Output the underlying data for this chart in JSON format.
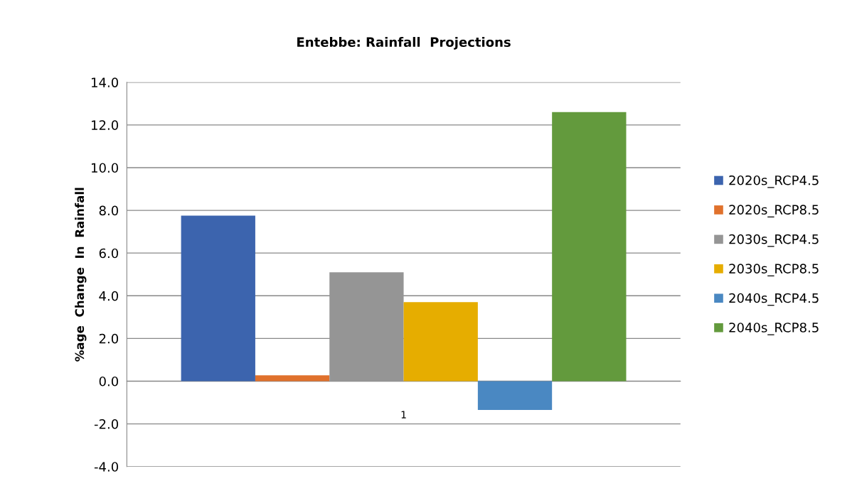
{
  "chart_data": {
    "type": "bar",
    "title": "Entebbe: Rainfall  Projections",
    "ylabel": "%age  Change  In  Rainfall",
    "categories": [
      "1"
    ],
    "series": [
      {
        "name": "2020s_RCP4.5",
        "color": "#3c64ae",
        "values": [
          7.75
        ]
      },
      {
        "name": "2020s_RCP8.5",
        "color": "#e0712c",
        "values": [
          0.27
        ]
      },
      {
        "name": "2030s_RCP4.5",
        "color": "#959595",
        "values": [
          5.1
        ]
      },
      {
        "name": "2030s_RCP8.5",
        "color": "#e6ad00",
        "values": [
          3.7
        ]
      },
      {
        "name": "2040s_RCP4.5",
        "color": "#4a88c2",
        "values": [
          -1.35
        ]
      },
      {
        "name": "2040s_RCP8.5",
        "color": "#639a3d",
        "values": [
          12.6
        ]
      }
    ],
    "ylim": [
      -4,
      14
    ],
    "yticks": [
      {
        "value": -4,
        "label": "-4.0"
      },
      {
        "value": -2,
        "label": "-2.0"
      },
      {
        "value": 0,
        "label": "0.0"
      },
      {
        "value": 2,
        "label": "2.0"
      },
      {
        "value": 4,
        "label": "4.0"
      },
      {
        "value": 6,
        "label": "6.0"
      },
      {
        "value": 8,
        "label": "8.0"
      },
      {
        "value": 10,
        "label": "10.0"
      },
      {
        "value": 12,
        "label": "12.0"
      },
      {
        "value": 14,
        "label": "14.0"
      }
    ],
    "grid": "y",
    "legend": "right"
  }
}
